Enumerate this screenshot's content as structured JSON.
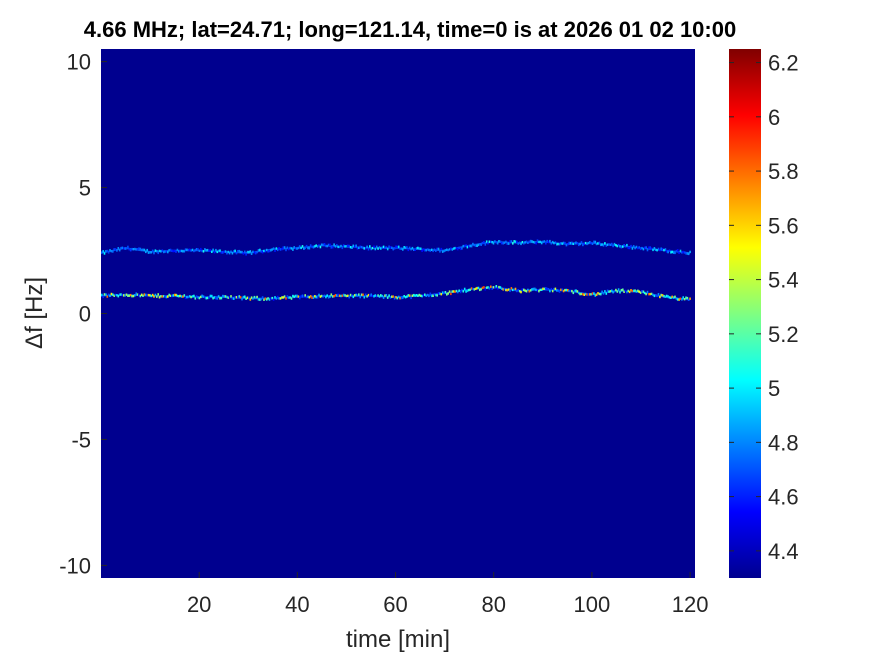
{
  "chart_data": {
    "type": "heatmap",
    "title": "4.66 MHz;  lat=24.71; long=121.14, time=0 is at 2026 01 02 10:00",
    "xlabel": "time [min]",
    "ylabel": "Δf [Hz]",
    "xlim": [
      0,
      121
    ],
    "ylim": [
      -10.5,
      10.5
    ],
    "x_ticks": [
      20,
      40,
      60,
      80,
      100,
      120
    ],
    "y_ticks": [
      -10,
      -5,
      0,
      5,
      10
    ],
    "x_tick_labels": [
      "20",
      "40",
      "60",
      "80",
      "100",
      "120"
    ],
    "y_tick_labels": [
      "-10",
      "-5",
      "0",
      "5",
      "10"
    ],
    "background_value": 4.3,
    "colormap": "jet",
    "colorbar": {
      "min": 4.3,
      "max": 6.25,
      "ticks": [
        4.4,
        4.6,
        4.8,
        5,
        5.2,
        5.4,
        5.6,
        5.8,
        6,
        6.2
      ],
      "tick_labels": [
        "4.4",
        "4.6",
        "4.8",
        "5",
        "5.2",
        "5.4",
        "5.6",
        "5.8",
        "6",
        "6.2"
      ]
    },
    "series": [
      {
        "x": [
          0,
          5,
          10,
          15,
          20,
          25,
          30,
          35,
          40,
          45,
          50,
          55,
          60,
          65,
          70,
          75,
          80,
          85,
          90,
          95,
          100,
          105,
          110,
          115,
          120
        ],
        "y": [
          2.4,
          2.6,
          2.45,
          2.5,
          2.5,
          2.45,
          2.4,
          2.55,
          2.6,
          2.7,
          2.65,
          2.6,
          2.6,
          2.55,
          2.5,
          2.7,
          2.85,
          2.8,
          2.85,
          2.75,
          2.8,
          2.7,
          2.6,
          2.5,
          2.4
        ],
        "peak_intensity": 5.1
      },
      {
        "x": [
          0,
          5,
          10,
          15,
          20,
          25,
          30,
          35,
          40,
          45,
          50,
          55,
          60,
          65,
          70,
          75,
          80,
          85,
          90,
          95,
          100,
          105,
          110,
          115,
          120
        ],
        "y": [
          0.7,
          0.75,
          0.7,
          0.7,
          0.65,
          0.65,
          0.6,
          0.6,
          0.65,
          0.7,
          0.7,
          0.7,
          0.65,
          0.7,
          0.8,
          0.95,
          1.05,
          0.9,
          0.95,
          0.9,
          0.75,
          0.9,
          0.85,
          0.65,
          0.55
        ],
        "peak_intensity": 5.9
      }
    ]
  }
}
